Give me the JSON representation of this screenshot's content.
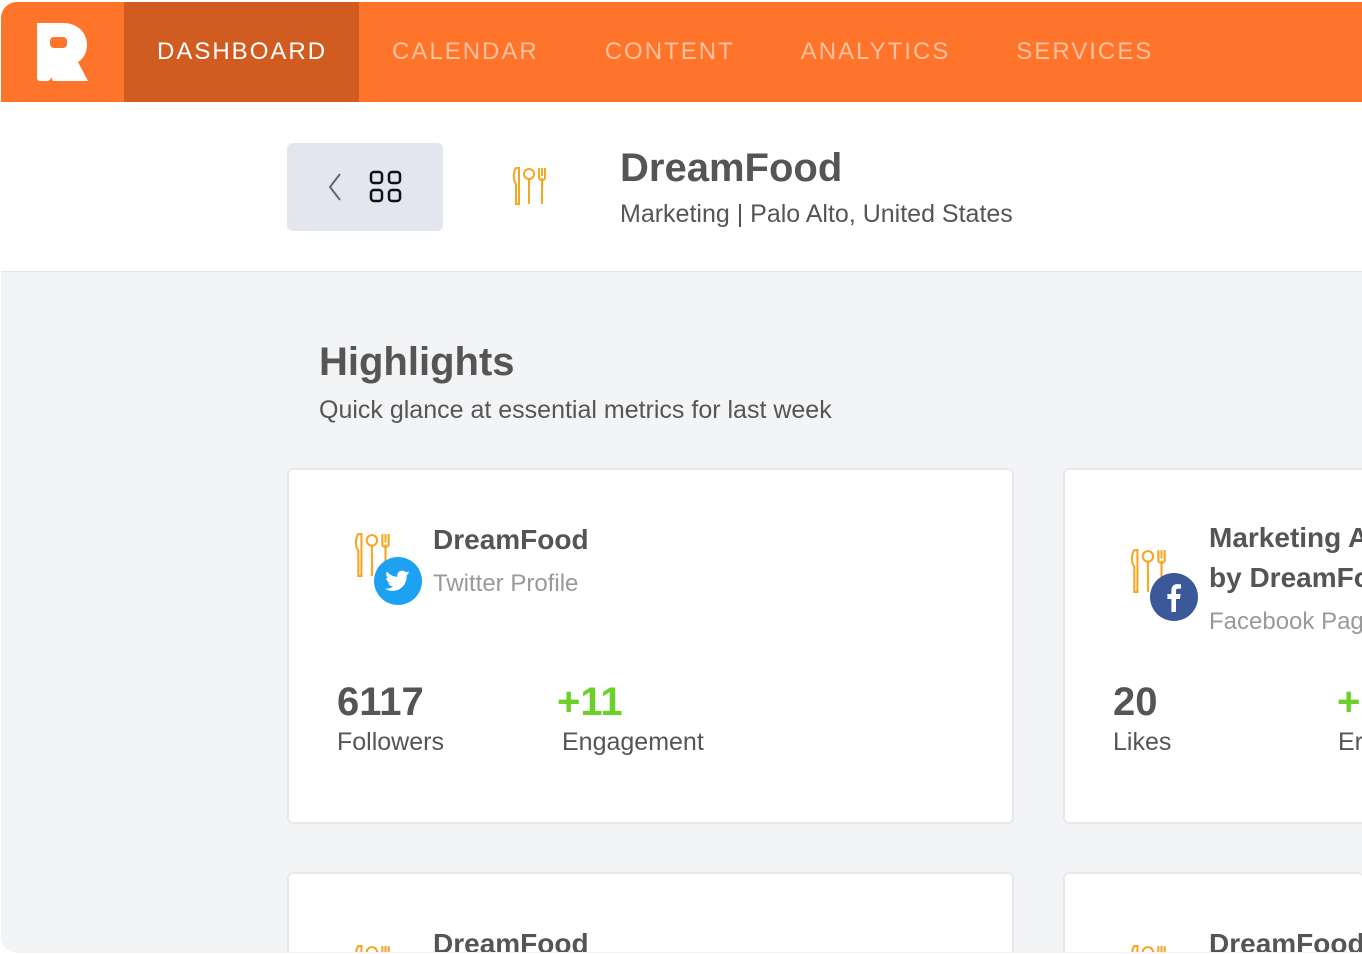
{
  "nav": {
    "items": [
      "DASHBOARD",
      "CALENDAR",
      "CONTENT",
      "ANALYTICS",
      "SERVICES"
    ],
    "active": "DASHBOARD"
  },
  "colors": {
    "brand": "#ff742b",
    "active_nav": "#d05c21",
    "positive": "#6bd12a",
    "twitter": "#1da1f2",
    "facebook": "#3b5998",
    "icon_orange": "#f5a623"
  },
  "header": {
    "org_name": "DreamFood",
    "org_subtitle": "Marketing | Palo Alto, United States",
    "back_icon": "chevron-left-icon",
    "grid_icon": "grid-icon"
  },
  "highlights": {
    "title": "Highlights",
    "subtitle": "Quick glance at essential metrics for last week"
  },
  "cards": [
    {
      "title": "DreamFood",
      "subtitle": "Twitter Profile",
      "network": "twitter",
      "metric1": {
        "value": "6117",
        "label": "Followers"
      },
      "metric2": {
        "value": "+11",
        "label": "Engagement"
      }
    },
    {
      "title_line1": "Marketing A",
      "title_line2": "by DreamFo",
      "subtitle": "Facebook Page",
      "network": "facebook",
      "metric1": {
        "value": "20",
        "label": "Likes"
      },
      "metric2": {
        "value": "+",
        "label": "Er"
      }
    },
    {
      "title": "DreamFood"
    },
    {
      "title": "DreamFood"
    }
  ]
}
